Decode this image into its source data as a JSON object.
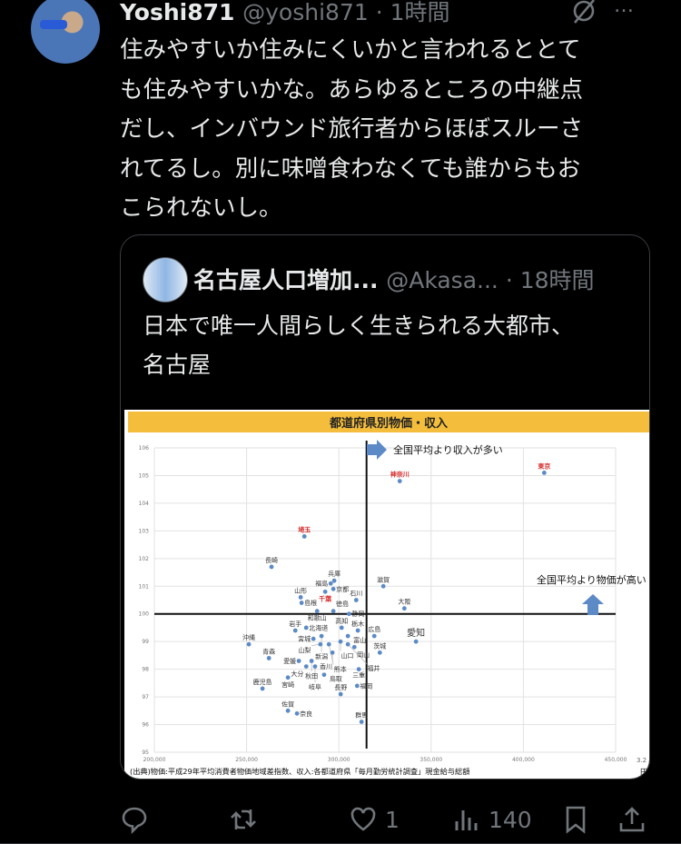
{
  "tweet": {
    "display_name": "Yoshi871",
    "handle": "@yoshi871",
    "time": "· 1時間",
    "lines": [
      "住みやすいか住みにくいかと言われるととて",
      "も住みやすいかな。あらゆるところの中継点",
      "だし、インバウンド旅行者からほぼスルーさ",
      "れてるし。別に味噌食わなくても誰からもお",
      "こられないし。"
    ],
    "more_icon": "…"
  },
  "quote": {
    "display_name": "名古屋人口増加...",
    "handle": "@Akasa...",
    "time": "· 18時間",
    "lines": [
      "日本で唯一人間らしく生きられる大都市、",
      "名古屋"
    ]
  },
  "actions": {
    "reply_count": "",
    "retweet_count": "",
    "like_count": "1",
    "views_count": "140"
  },
  "chart_data": {
    "type": "scatter",
    "title": "都道府県別物価・収入",
    "xlabel": "円",
    "x_ticks": [
      "200,000",
      "250,000",
      "300,000",
      "350,000",
      "400,000",
      "450,000"
    ],
    "y_ticks": [
      "95",
      "96",
      "97",
      "98",
      "99",
      "100",
      "101",
      "102",
      "103",
      "104",
      "105",
      "106"
    ],
    "xlim": [
      200000,
      450000
    ],
    "ylim": [
      95,
      106
    ],
    "grid": true,
    "extra_tick": "3.2",
    "reference_lines": {
      "x": 315000,
      "y": 100
    },
    "annotations": {
      "income": "全国平均より収入が多い",
      "price": "全国平均より物価が高い"
    },
    "source": "(出典)物価:平成29年平均消費者物価地域差指数、収入:各都道府県「毎月勤労統計調査」現金給与総額",
    "highlight_color": "#d62b2b",
    "point_color": "#5b8ac6",
    "points": [
      {
        "label": "東京",
        "x": 411300,
        "y": 105.1,
        "highlight": true
      },
      {
        "label": "神奈川",
        "x": 333000,
        "y": 104.8,
        "highlight": true
      },
      {
        "label": "埼玉",
        "x": 281300,
        "y": 102.8,
        "highlight": true
      },
      {
        "label": "長崎",
        "x": 263500,
        "y": 101.7
      },
      {
        "label": "福島",
        "x": 295600,
        "y": 101.1
      },
      {
        "label": "兵庫",
        "x": 297500,
        "y": 101.2
      },
      {
        "label": "京都",
        "x": 297000,
        "y": 100.9
      },
      {
        "label": "千葉",
        "x": 292600,
        "y": 100.8,
        "highlight": true
      },
      {
        "label": "滋賀",
        "x": 324100,
        "y": 101.0
      },
      {
        "label": "石川",
        "x": 309400,
        "y": 100.5
      },
      {
        "label": "山形",
        "x": 279300,
        "y": 100.6
      },
      {
        "label": "大阪",
        "x": 335500,
        "y": 100.2
      },
      {
        "label": "島根",
        "x": 279800,
        "y": 100.4
      },
      {
        "label": "和歌山",
        "x": 288200,
        "y": 100.1
      },
      {
        "label": "徳島",
        "x": 297000,
        "y": 100.1
      },
      {
        "label": "静岡",
        "x": 305500,
        "y": 100.0
      },
      {
        "label": "北海道",
        "x": 282300,
        "y": 99.5
      },
      {
        "label": "岩手",
        "x": 276400,
        "y": 99.4
      },
      {
        "label": "宮城",
        "x": 286200,
        "y": 99.1
      },
      {
        "label": "新潟",
        "x": 290600,
        "y": 99.2
      },
      {
        "label": "高知",
        "x": 301500,
        "y": 99.5
      },
      {
        "label": "富山",
        "x": 304900,
        "y": 99.2
      },
      {
        "label": "山口",
        "x": 300900,
        "y": 99.0
      },
      {
        "label": "栃木",
        "x": 310300,
        "y": 99.4
      },
      {
        "label": "広島",
        "x": 319200,
        "y": 99.2
      },
      {
        "label": "沖縄",
        "x": 251200,
        "y": 98.9
      },
      {
        "label": "茨城",
        "x": 322200,
        "y": 98.6
      },
      {
        "label": "愛知",
        "x": 341800,
        "y": 99.0
      },
      {
        "label": "熊本",
        "x": 294600,
        "y": 98.9
      },
      {
        "label": "山梨",
        "x": 290000,
        "y": 98.9
      },
      {
        "label": "岡山",
        "x": 308400,
        "y": 98.8
      },
      {
        "label": "福井",
        "x": 304900,
        "y": 98.9
      },
      {
        "label": "青森",
        "x": 262100,
        "y": 98.4
      },
      {
        "label": "愛媛",
        "x": 278300,
        "y": 98.3
      },
      {
        "label": "秋田",
        "x": 285200,
        "y": 98.3
      },
      {
        "label": "香川",
        "x": 296500,
        "y": 98.6
      },
      {
        "label": "岐阜",
        "x": 287100,
        "y": 98.1
      },
      {
        "label": "大分",
        "x": 282300,
        "y": 98.1
      },
      {
        "label": "三重",
        "x": 310800,
        "y": 98.0
      },
      {
        "label": "宮崎",
        "x": 272400,
        "y": 97.7
      },
      {
        "label": "鹿児島",
        "x": 258600,
        "y": 97.3
      },
      {
        "label": "福岡",
        "x": 309900,
        "y": 97.4
      },
      {
        "label": "長野",
        "x": 301000,
        "y": 97.1
      },
      {
        "label": "鳥取",
        "x": 292000,
        "y": 97.8
      },
      {
        "label": "佐賀",
        "x": 272400,
        "y": 96.5
      },
      {
        "label": "奈良",
        "x": 277300,
        "y": 96.4
      },
      {
        "label": "群馬",
        "x": 312300,
        "y": 96.1
      }
    ]
  }
}
